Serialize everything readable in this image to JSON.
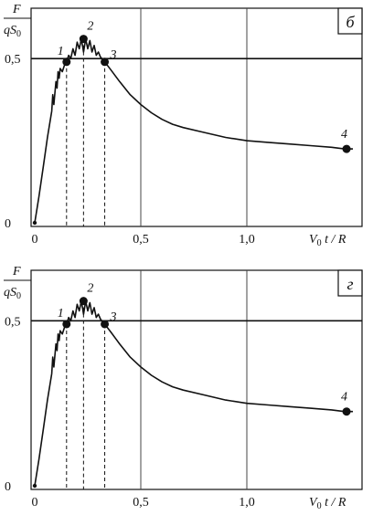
{
  "chart_data": [
    {
      "type": "line",
      "panel_label": "б",
      "ylabel": {
        "numerator": "F",
        "denominator": "qS",
        "subscript": "0"
      },
      "xlabel": {
        "v": "V",
        "sub": "0",
        "rest": " t / R"
      },
      "xlim": [
        0,
        1.5
      ],
      "ylim": [
        0,
        0.62
      ],
      "x_ticks": [
        {
          "value": 0,
          "label": "0"
        },
        {
          "value": 0.5,
          "label": "0,5"
        },
        {
          "value": 1.0,
          "label": "1,0"
        }
      ],
      "y_ticks": [
        {
          "value": 0,
          "label": "0"
        },
        {
          "value": 0.5,
          "label": "0,5"
        }
      ],
      "grid": "vertical at 0.5 and 1.0; horizontal at 0.5",
      "series": [
        {
          "x": [
            0.0,
            0.02,
            0.04,
            0.06,
            0.08,
            0.085,
            0.09,
            0.1,
            0.105,
            0.11,
            0.115,
            0.12,
            0.13,
            0.14,
            0.15,
            0.16,
            0.17,
            0.18,
            0.19,
            0.2,
            0.21,
            0.22,
            0.23,
            0.24,
            0.25,
            0.26,
            0.27,
            0.28,
            0.29,
            0.3,
            0.31,
            0.33,
            0.36,
            0.4,
            0.45,
            0.5,
            0.55,
            0.6,
            0.65,
            0.7,
            0.8,
            0.9,
            1.0,
            1.1,
            1.2,
            1.3,
            1.4,
            1.46,
            1.5
          ],
          "y": [
            0.0,
            0.08,
            0.17,
            0.26,
            0.34,
            0.39,
            0.36,
            0.43,
            0.41,
            0.46,
            0.44,
            0.47,
            0.46,
            0.48,
            0.49,
            0.51,
            0.5,
            0.53,
            0.51,
            0.55,
            0.53,
            0.56,
            0.52,
            0.56,
            0.53,
            0.555,
            0.52,
            0.54,
            0.51,
            0.52,
            0.505,
            0.49,
            0.465,
            0.43,
            0.39,
            0.36,
            0.335,
            0.315,
            0.3,
            0.29,
            0.275,
            0.26,
            0.25,
            0.245,
            0.24,
            0.235,
            0.23,
            0.225,
            0.225
          ]
        }
      ],
      "markers": [
        {
          "label": "1",
          "x": 0.15,
          "y": 0.49
        },
        {
          "label": "2",
          "x": 0.23,
          "y": 0.56
        },
        {
          "label": "3",
          "x": 0.33,
          "y": 0.49
        },
        {
          "label": "4",
          "x": 1.47,
          "y": 0.225
        }
      ]
    },
    {
      "type": "line",
      "panel_label": "г",
      "ylabel": {
        "numerator": "F",
        "denominator": "qS",
        "subscript": "0"
      },
      "xlabel": {
        "v": "V",
        "sub": "0",
        "rest": " t / R"
      },
      "xlim": [
        0,
        1.5
      ],
      "ylim": [
        0,
        0.62
      ],
      "x_ticks": [
        {
          "value": 0,
          "label": "0"
        },
        {
          "value": 0.5,
          "label": "0,5"
        },
        {
          "value": 1.0,
          "label": "1,0"
        }
      ],
      "y_ticks": [
        {
          "value": 0,
          "label": "0"
        },
        {
          "value": 0.5,
          "label": "0,5"
        }
      ],
      "grid": "vertical at 0.5 and 1.0; horizontal at 0.5",
      "series": [
        {
          "x": [
            0.0,
            0.02,
            0.04,
            0.06,
            0.08,
            0.085,
            0.09,
            0.1,
            0.105,
            0.11,
            0.115,
            0.12,
            0.13,
            0.14,
            0.15,
            0.16,
            0.17,
            0.18,
            0.19,
            0.2,
            0.21,
            0.22,
            0.23,
            0.24,
            0.25,
            0.26,
            0.27,
            0.28,
            0.29,
            0.3,
            0.31,
            0.33,
            0.36,
            0.4,
            0.45,
            0.5,
            0.55,
            0.6,
            0.65,
            0.7,
            0.8,
            0.9,
            1.0,
            1.1,
            1.2,
            1.3,
            1.4,
            1.46,
            1.5
          ],
          "y": [
            0.0,
            0.08,
            0.17,
            0.26,
            0.34,
            0.39,
            0.36,
            0.43,
            0.41,
            0.46,
            0.44,
            0.47,
            0.46,
            0.48,
            0.49,
            0.51,
            0.5,
            0.53,
            0.51,
            0.55,
            0.53,
            0.56,
            0.52,
            0.56,
            0.53,
            0.555,
            0.52,
            0.54,
            0.51,
            0.52,
            0.505,
            0.49,
            0.465,
            0.43,
            0.39,
            0.36,
            0.335,
            0.315,
            0.3,
            0.29,
            0.275,
            0.26,
            0.25,
            0.245,
            0.24,
            0.235,
            0.23,
            0.225,
            0.225
          ]
        }
      ],
      "markers": [
        {
          "label": "1",
          "x": 0.15,
          "y": 0.49
        },
        {
          "label": "2",
          "x": 0.23,
          "y": 0.56
        },
        {
          "label": "3",
          "x": 0.33,
          "y": 0.49
        },
        {
          "label": "4",
          "x": 1.47,
          "y": 0.225
        }
      ]
    }
  ]
}
